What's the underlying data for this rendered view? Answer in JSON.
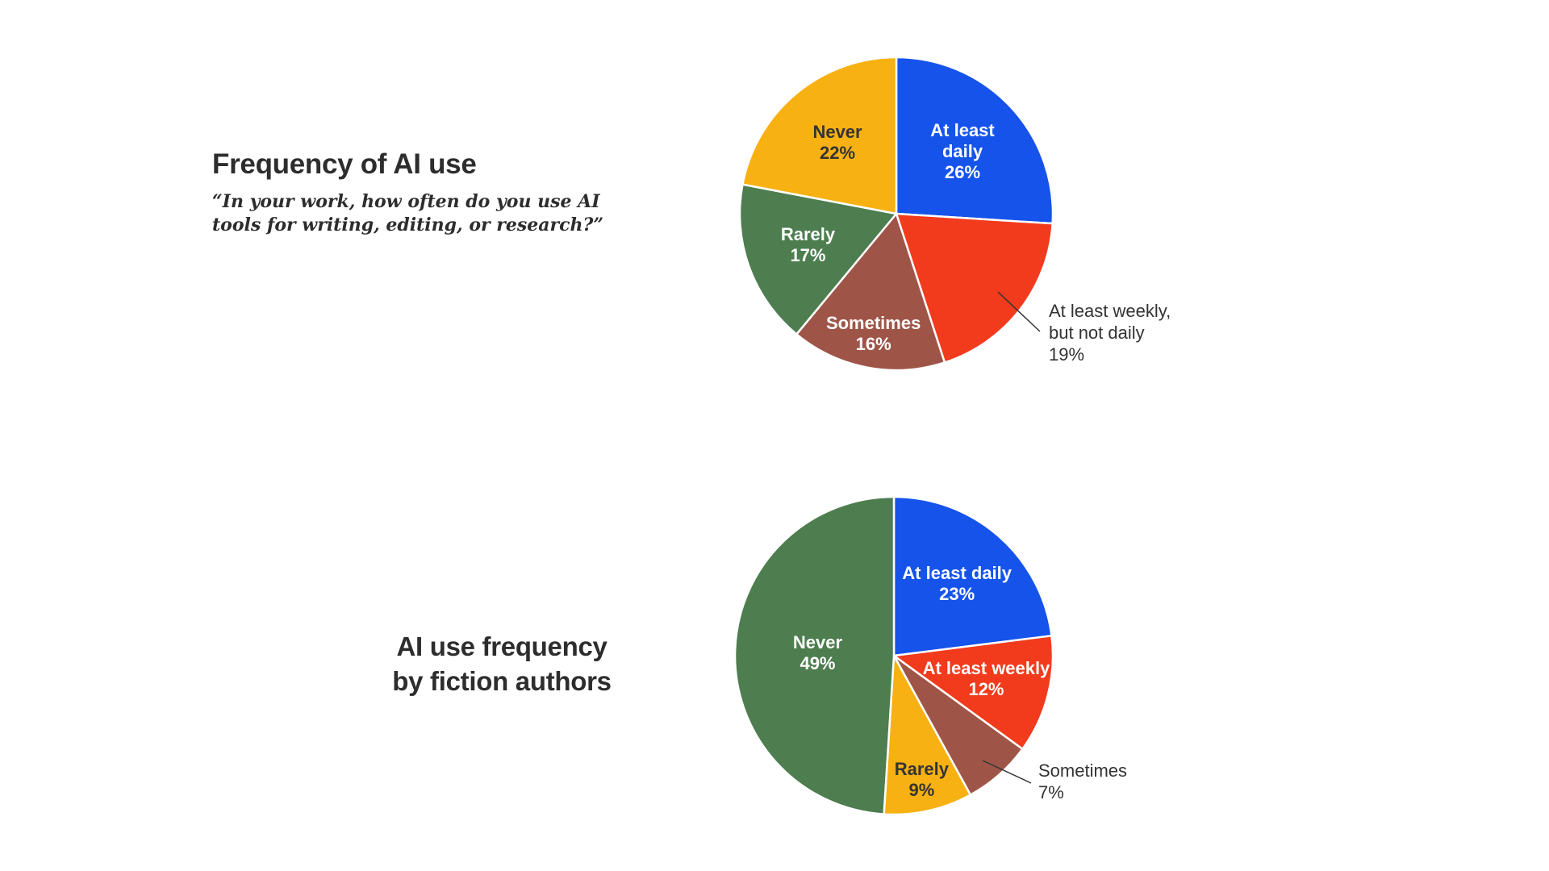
{
  "page": {
    "background": "#FFFFFF"
  },
  "colors": {
    "blue": "#1553EB",
    "red": "#F23B1D",
    "brown": "#9E5548",
    "green": "#4E7D50",
    "yellow": "#F7B112",
    "title_text": "#2D2D2D",
    "label_light": "#FFFFFF",
    "label_dark": "#343434",
    "callout_line": "#333333"
  },
  "chart_data": [
    {
      "type": "pie",
      "id": "frequency-of-ai-use",
      "title": "Frequency of AI use",
      "subtitle_lines": [
        "“In your work, how often do you use AI",
        "tools for writing, editing, or research?”"
      ],
      "radius": 194,
      "start": "top",
      "direction": "clockwise",
      "legend": "none",
      "slices": [
        {
          "label": "At least daily",
          "value": 26,
          "pct": "26%",
          "color": "#1553EB",
          "placement": "inside",
          "lines": [
            "At least",
            "daily",
            "26%"
          ],
          "text_color": "#FFFFFF",
          "label_r": 0.58
        },
        {
          "label": "At least weekly, but not daily",
          "value": 19,
          "pct": "19%",
          "color": "#F23B1D",
          "placement": "outside",
          "lines": [
            "At least weekly,",
            "but not daily",
            "19%"
          ],
          "text_color": "#333333",
          "label_xy": [
            399,
            317
          ],
          "callout": [
            336,
            307,
            388,
            356
          ]
        },
        {
          "label": "Sometimes",
          "value": 16,
          "pct": "16%",
          "color": "#9E5548",
          "placement": "inside",
          "lines": [
            "Sometimes",
            "16%"
          ],
          "text_color": "#FFFFFF",
          "label_r": 0.78
        },
        {
          "label": "Rarely",
          "value": 17,
          "pct": "17%",
          "color": "#4E7D50",
          "placement": "inside",
          "lines": [
            "Rarely",
            "17%"
          ],
          "text_color": "#FFFFFF",
          "label_r": 0.6
        },
        {
          "label": "Never",
          "value": 22,
          "pct": "22%",
          "color": "#F7B112",
          "placement": "inside",
          "lines": [
            "Never",
            "22%"
          ],
          "text_color": "#343434",
          "label_r": 0.59
        }
      ]
    },
    {
      "type": "pie",
      "id": "ai-use-frequency-fiction-authors",
      "title_lines": [
        "AI use frequency",
        "by fiction authors"
      ],
      "radius": 197,
      "start": "top",
      "direction": "clockwise",
      "legend": "none",
      "slices": [
        {
          "label": "At least daily",
          "value": 23,
          "pct": "23%",
          "color": "#1553EB",
          "placement": "inside",
          "lines": [
            "At least daily",
            "23%"
          ],
          "text_color": "#FFFFFF",
          "label_r": 0.6
        },
        {
          "label": "At least weekly",
          "value": 12,
          "pct": "12%",
          "color": "#F23B1D",
          "placement": "inside",
          "lines": [
            "At least weekly",
            "12%"
          ],
          "text_color": "#FFFFFF",
          "label_r": 0.6
        },
        {
          "label": "Sometimes",
          "value": 7,
          "pct": "7%",
          "color": "#9E5548",
          "placement": "outside",
          "lines": [
            "Sometimes",
            "7%"
          ],
          "text_color": "#333333",
          "label_xy": [
            389,
            339
          ],
          "callout": [
            320,
            340,
            380,
            368
          ]
        },
        {
          "label": "Rarely",
          "value": 9,
          "pct": "9%",
          "color": "#F7B112",
          "placement": "inside",
          "lines": [
            "Rarely",
            "9%"
          ],
          "text_color": "#343434",
          "label_r": 0.8
        },
        {
          "label": "Never",
          "value": 49,
          "pct": "49%",
          "color": "#4E7D50",
          "placement": "inside",
          "lines": [
            "Never",
            "49%"
          ],
          "text_color": "#FFFFFF",
          "label_r": 0.48
        }
      ]
    }
  ]
}
